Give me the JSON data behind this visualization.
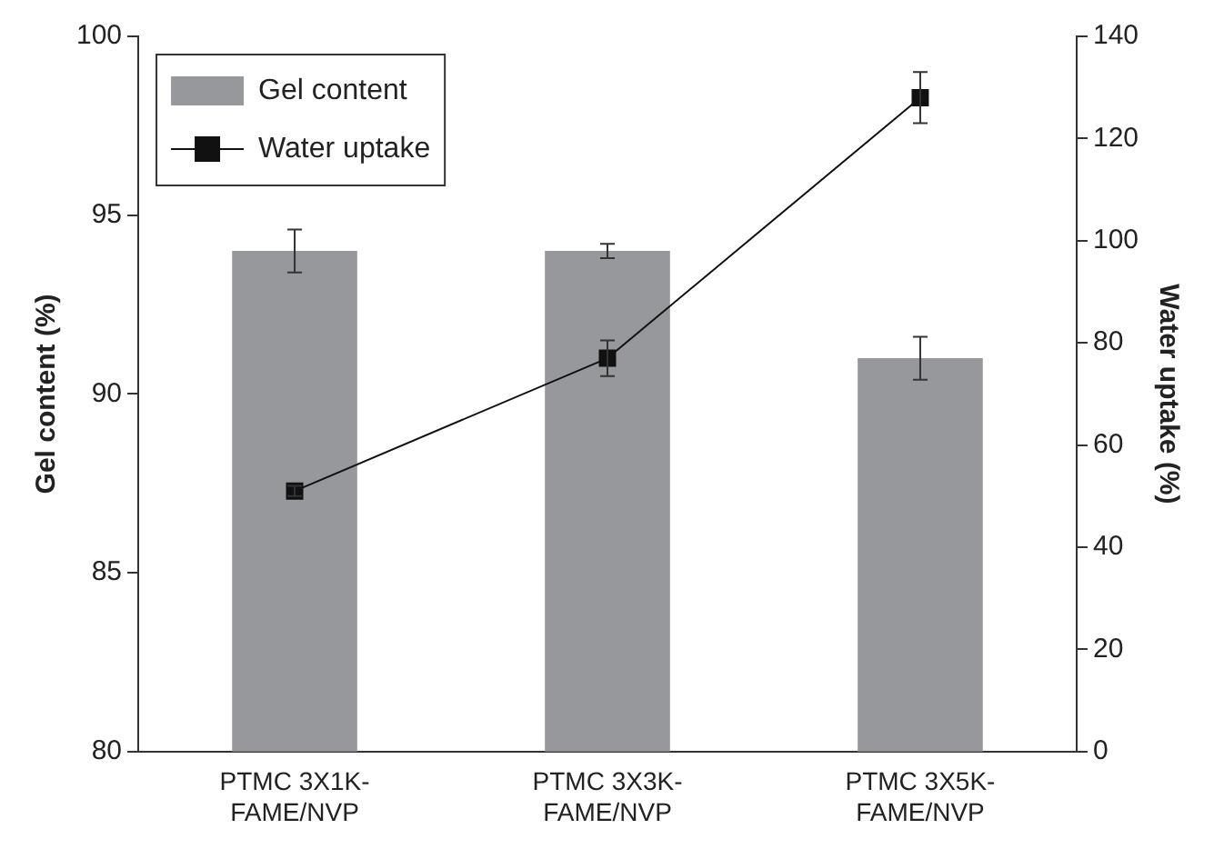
{
  "chart_data": {
    "type": "bar",
    "ylabel": "Gel content (%)",
    "y2label": "Water uptake (%)",
    "categories": [
      "PTMC 3X1K-FAME/NVP",
      "PTMC 3X3K-FAME/NVP",
      "PTMC 3X5K-FAME/NVP"
    ],
    "series": [
      {
        "name": "Gel content",
        "color": "#96989c",
        "values": [
          94.0,
          94.0,
          91.0
        ],
        "errors": [
          0.6,
          0.2,
          0.6
        ]
      },
      {
        "name": "Water uptake",
        "type": "line",
        "axis": "y2",
        "color": "#111111",
        "marker": "square",
        "values": [
          51,
          77,
          128
        ],
        "errors": [
          1,
          3.5,
          5
        ]
      }
    ],
    "ylim": [
      80,
      100
    ],
    "yticks": [
      80,
      85,
      90,
      95,
      100
    ],
    "y2lim": [
      0,
      140
    ],
    "y2ticks": [
      0,
      20,
      40,
      60,
      80,
      100,
      120,
      140
    ],
    "grid": false,
    "legend": "top left"
  }
}
